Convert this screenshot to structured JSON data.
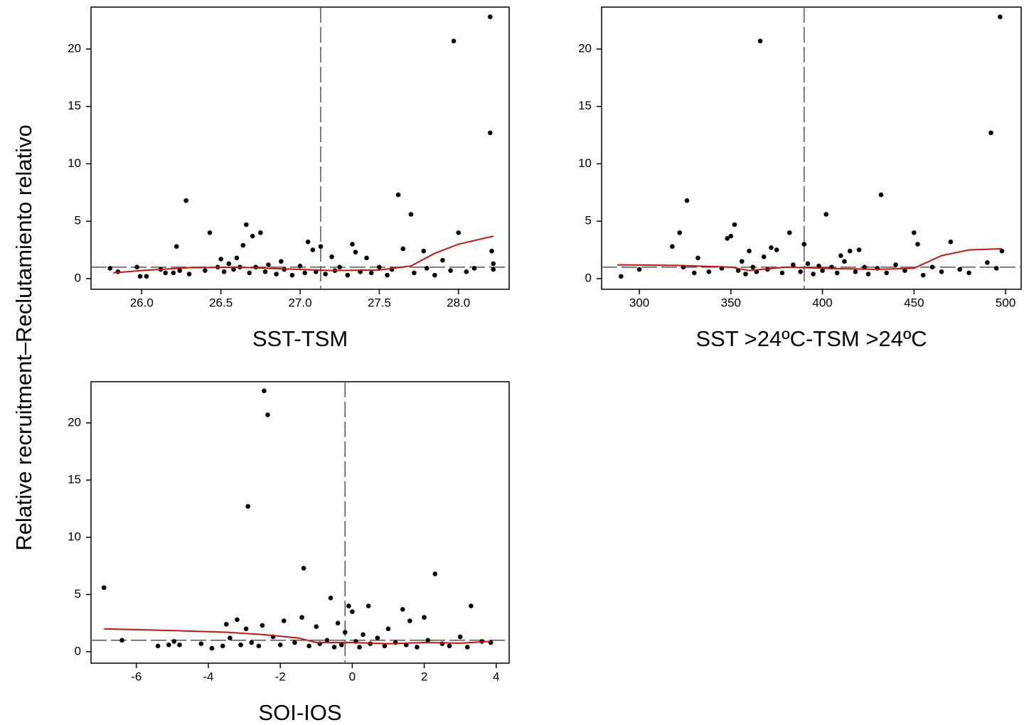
{
  "ylabel": "Relative recruitment–Reclutamiento relativo",
  "chart_data": [
    {
      "type": "scatter",
      "xlabel": "SST-TSM",
      "xlim": [
        25.68,
        28.32
      ],
      "ylim": [
        -0.93,
        23.65
      ],
      "xticks": [
        {
          "value": 26,
          "label": "26.0"
        },
        {
          "value": 26.5,
          "label": "26.5"
        },
        {
          "value": 27,
          "label": "27.0"
        },
        {
          "value": 27.5,
          "label": "27.5"
        },
        {
          "value": 28,
          "label": "28.0"
        }
      ],
      "yticks": [
        0,
        5,
        10,
        15,
        20
      ],
      "color": "#000000",
      "fit_color": "#cc1111",
      "vline": 27.13,
      "hline": 1,
      "x": [
        25.8,
        25.85,
        25.97,
        25.99,
        26.03,
        26.12,
        26.15,
        26.2,
        26.22,
        26.24,
        26.28,
        26.3,
        26.4,
        26.43,
        26.48,
        26.5,
        26.52,
        26.55,
        26.58,
        26.6,
        26.62,
        26.64,
        26.66,
        26.68,
        26.7,
        26.72,
        26.75,
        26.78,
        26.8,
        26.85,
        26.88,
        26.9,
        26.95,
        27.0,
        27.03,
        27.05,
        27.08,
        27.1,
        27.13,
        27.16,
        27.2,
        27.22,
        27.25,
        27.3,
        27.33,
        27.35,
        27.38,
        27.42,
        27.45,
        27.5,
        27.55,
        27.58,
        27.62,
        27.65,
        27.7,
        27.72,
        27.78,
        27.8,
        27.85,
        27.9,
        27.95,
        27.97,
        28.0,
        28.05,
        28.1,
        28.2,
        28.2,
        28.21,
        28.22,
        28.22
      ],
      "values": [
        0.9,
        0.6,
        1.0,
        0.2,
        0.2,
        0.8,
        0.5,
        0.5,
        2.8,
        0.7,
        6.8,
        0.4,
        0.7,
        4.0,
        1.0,
        1.7,
        0.6,
        1.3,
        0.8,
        1.8,
        1.0,
        2.9,
        4.7,
        0.5,
        3.7,
        1.0,
        4.0,
        0.6,
        1.2,
        0.4,
        1.5,
        0.8,
        0.3,
        1.1,
        0.5,
        3.2,
        2.5,
        0.6,
        2.8,
        0.4,
        1.9,
        0.7,
        1.0,
        0.3,
        3.0,
        2.3,
        0.6,
        1.8,
        0.5,
        1.0,
        0.3,
        0.8,
        7.3,
        2.6,
        5.6,
        0.5,
        2.4,
        0.9,
        0.3,
        1.6,
        0.7,
        20.7,
        4.0,
        0.6,
        0.9,
        22.8,
        12.7,
        2.4,
        1.3,
        0.8
      ],
      "fit_x": [
        25.82,
        26.0,
        26.3,
        26.6,
        26.9,
        27.2,
        27.5,
        27.7,
        27.85,
        28.0,
        28.22
      ],
      "fit_values": [
        0.5,
        0.7,
        0.95,
        1.0,
        0.85,
        0.7,
        0.75,
        1.1,
        2.2,
        3.0,
        3.7
      ]
    },
    {
      "type": "scatter",
      "xlabel": "SST >24ºC-TSM >24ºC",
      "xlim": [
        279.4,
        508.5
      ],
      "ylim": [
        -0.93,
        23.65
      ],
      "xticks": [
        300,
        350,
        400,
        450,
        500
      ],
      "yticks": [
        0,
        5,
        10,
        15,
        20
      ],
      "color": "#000000",
      "fit_color": "#cc1111",
      "vline": 390,
      "hline": 1,
      "x": [
        290,
        300,
        318,
        322,
        324,
        326,
        330,
        332,
        338,
        345,
        348,
        350,
        352,
        354,
        356,
        358,
        360,
        362,
        364,
        366,
        368,
        370,
        372,
        375,
        378,
        382,
        384,
        388,
        390,
        392,
        395,
        398,
        400,
        402,
        405,
        408,
        410,
        412,
        415,
        418,
        420,
        423,
        425,
        430,
        432,
        435,
        440,
        445,
        450,
        452,
        455,
        460,
        465,
        470,
        475,
        480,
        490,
        492,
        495,
        497,
        498
      ],
      "values": [
        0.2,
        0.8,
        2.8,
        4.0,
        1.0,
        6.8,
        0.5,
        1.8,
        0.6,
        0.9,
        3.5,
        3.7,
        4.7,
        0.7,
        1.5,
        0.4,
        2.4,
        1.0,
        0.6,
        20.7,
        1.9,
        0.8,
        2.7,
        2.5,
        0.5,
        4.0,
        1.2,
        0.6,
        3.0,
        1.3,
        0.4,
        1.1,
        0.7,
        5.6,
        1.0,
        0.5,
        2.0,
        1.5,
        2.4,
        0.6,
        2.5,
        1.0,
        0.4,
        0.9,
        7.3,
        0.5,
        1.2,
        0.7,
        4.0,
        3.0,
        0.3,
        1.0,
        0.6,
        3.2,
        0.8,
        0.5,
        1.4,
        12.7,
        0.9,
        22.8,
        2.4
      ],
      "fit_x": [
        288,
        320,
        350,
        360,
        380,
        400,
        430,
        450,
        465,
        480,
        498
      ],
      "fit_values": [
        1.2,
        1.15,
        1.0,
        0.7,
        1.0,
        0.9,
        0.8,
        0.9,
        2.0,
        2.5,
        2.6
      ]
    },
    {
      "type": "scatter",
      "xlabel": "SOI-IOS",
      "xlim": [
        -7.26,
        4.36
      ],
      "ylim": [
        -1.0,
        23.6
      ],
      "xticks": [
        -6,
        -4,
        -2,
        0,
        2,
        4
      ],
      "yticks": [
        0,
        5,
        10,
        15,
        20
      ],
      "color": "#000000",
      "fit_color": "#cc1111",
      "vline": -0.2,
      "hline": 1,
      "x": [
        -6.9,
        -6.4,
        -5.4,
        -5.1,
        -4.95,
        -4.8,
        -4.2,
        -3.9,
        -3.6,
        -3.5,
        -3.4,
        -3.2,
        -3.1,
        -2.95,
        -2.9,
        -2.8,
        -2.6,
        -2.5,
        -2.45,
        -2.35,
        -2.2,
        -2.0,
        -1.9,
        -1.6,
        -1.4,
        -1.35,
        -1.2,
        -1.0,
        -0.9,
        -0.7,
        -0.6,
        -0.5,
        -0.4,
        -0.3,
        -0.2,
        -0.1,
        0.0,
        0.1,
        0.2,
        0.3,
        0.45,
        0.5,
        0.7,
        0.9,
        1.0,
        1.2,
        1.4,
        1.5,
        1.6,
        1.8,
        2.0,
        2.1,
        2.3,
        2.5,
        2.7,
        3.0,
        3.2,
        3.3,
        3.6,
        3.85
      ],
      "values": [
        5.6,
        1.0,
        0.5,
        0.6,
        0.9,
        0.6,
        0.7,
        0.3,
        0.5,
        2.4,
        1.2,
        2.8,
        0.6,
        2.0,
        12.7,
        0.8,
        0.5,
        2.3,
        22.8,
        20.7,
        1.3,
        0.6,
        2.7,
        0.8,
        3.0,
        7.3,
        0.5,
        2.2,
        0.7,
        1.0,
        4.7,
        0.4,
        2.5,
        0.6,
        1.7,
        4.0,
        3.5,
        0.9,
        0.4,
        1.5,
        4.0,
        0.7,
        1.2,
        0.5,
        2.0,
        0.8,
        3.7,
        0.6,
        2.7,
        0.4,
        3.0,
        1.0,
        6.8,
        0.7,
        0.5,
        1.3,
        0.4,
        4.0,
        0.9,
        0.8
      ],
      "fit_x": [
        -6.9,
        -5,
        -3.5,
        -2.5,
        -1.5,
        -1.0,
        0,
        1,
        2,
        3,
        3.85
      ],
      "fit_values": [
        2.0,
        1.85,
        1.7,
        1.5,
        1.2,
        0.8,
        0.8,
        0.7,
        0.8,
        0.75,
        0.9
      ]
    }
  ]
}
